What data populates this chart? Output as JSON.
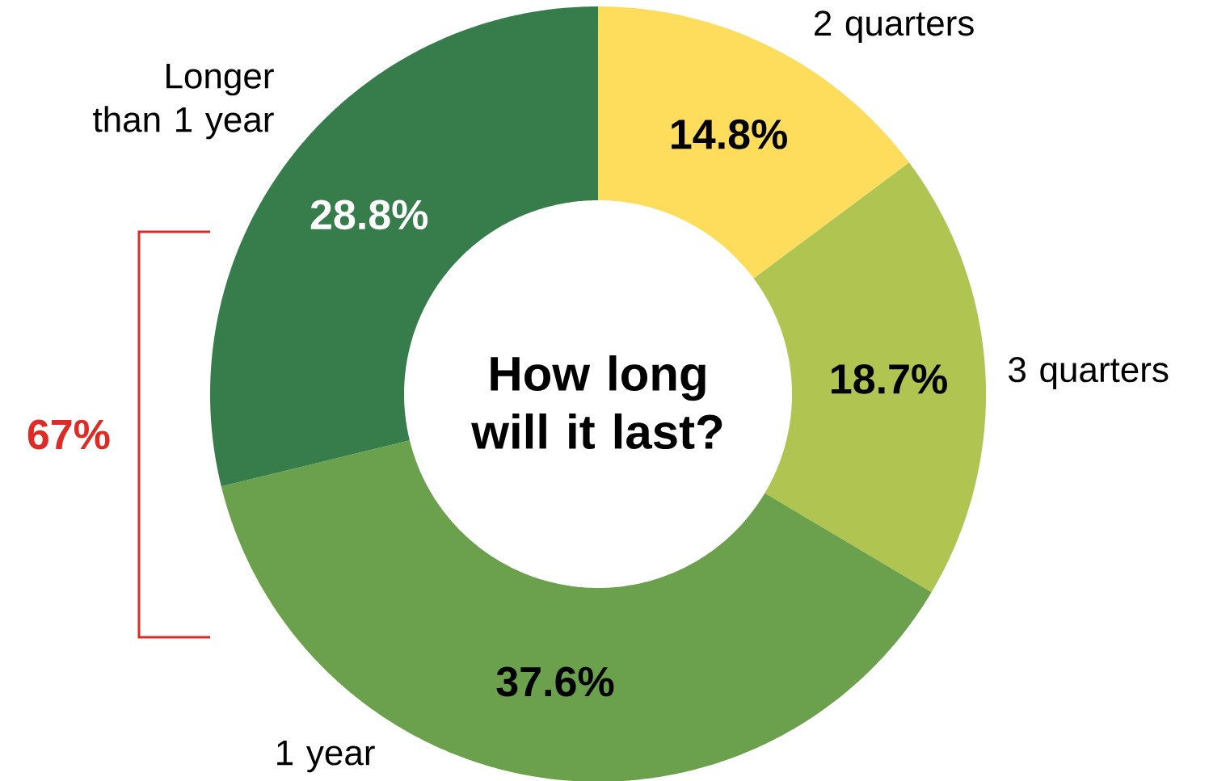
{
  "chart_data": {
    "type": "donut",
    "title": "How long will it last?",
    "categories": [
      "2 quarters",
      "3 quarters",
      "1 year",
      "Longer than 1 year"
    ],
    "values": [
      14.8,
      18.7,
      37.6,
      28.8
    ],
    "colors": [
      "#ffdd5c",
      "#b0c452",
      "#6ba14c",
      "#377d4b"
    ],
    "value_labels": [
      "14.8%",
      "18.7%",
      "37.6%",
      "28.8%"
    ],
    "annotations": [
      "67%"
    ]
  }
}
